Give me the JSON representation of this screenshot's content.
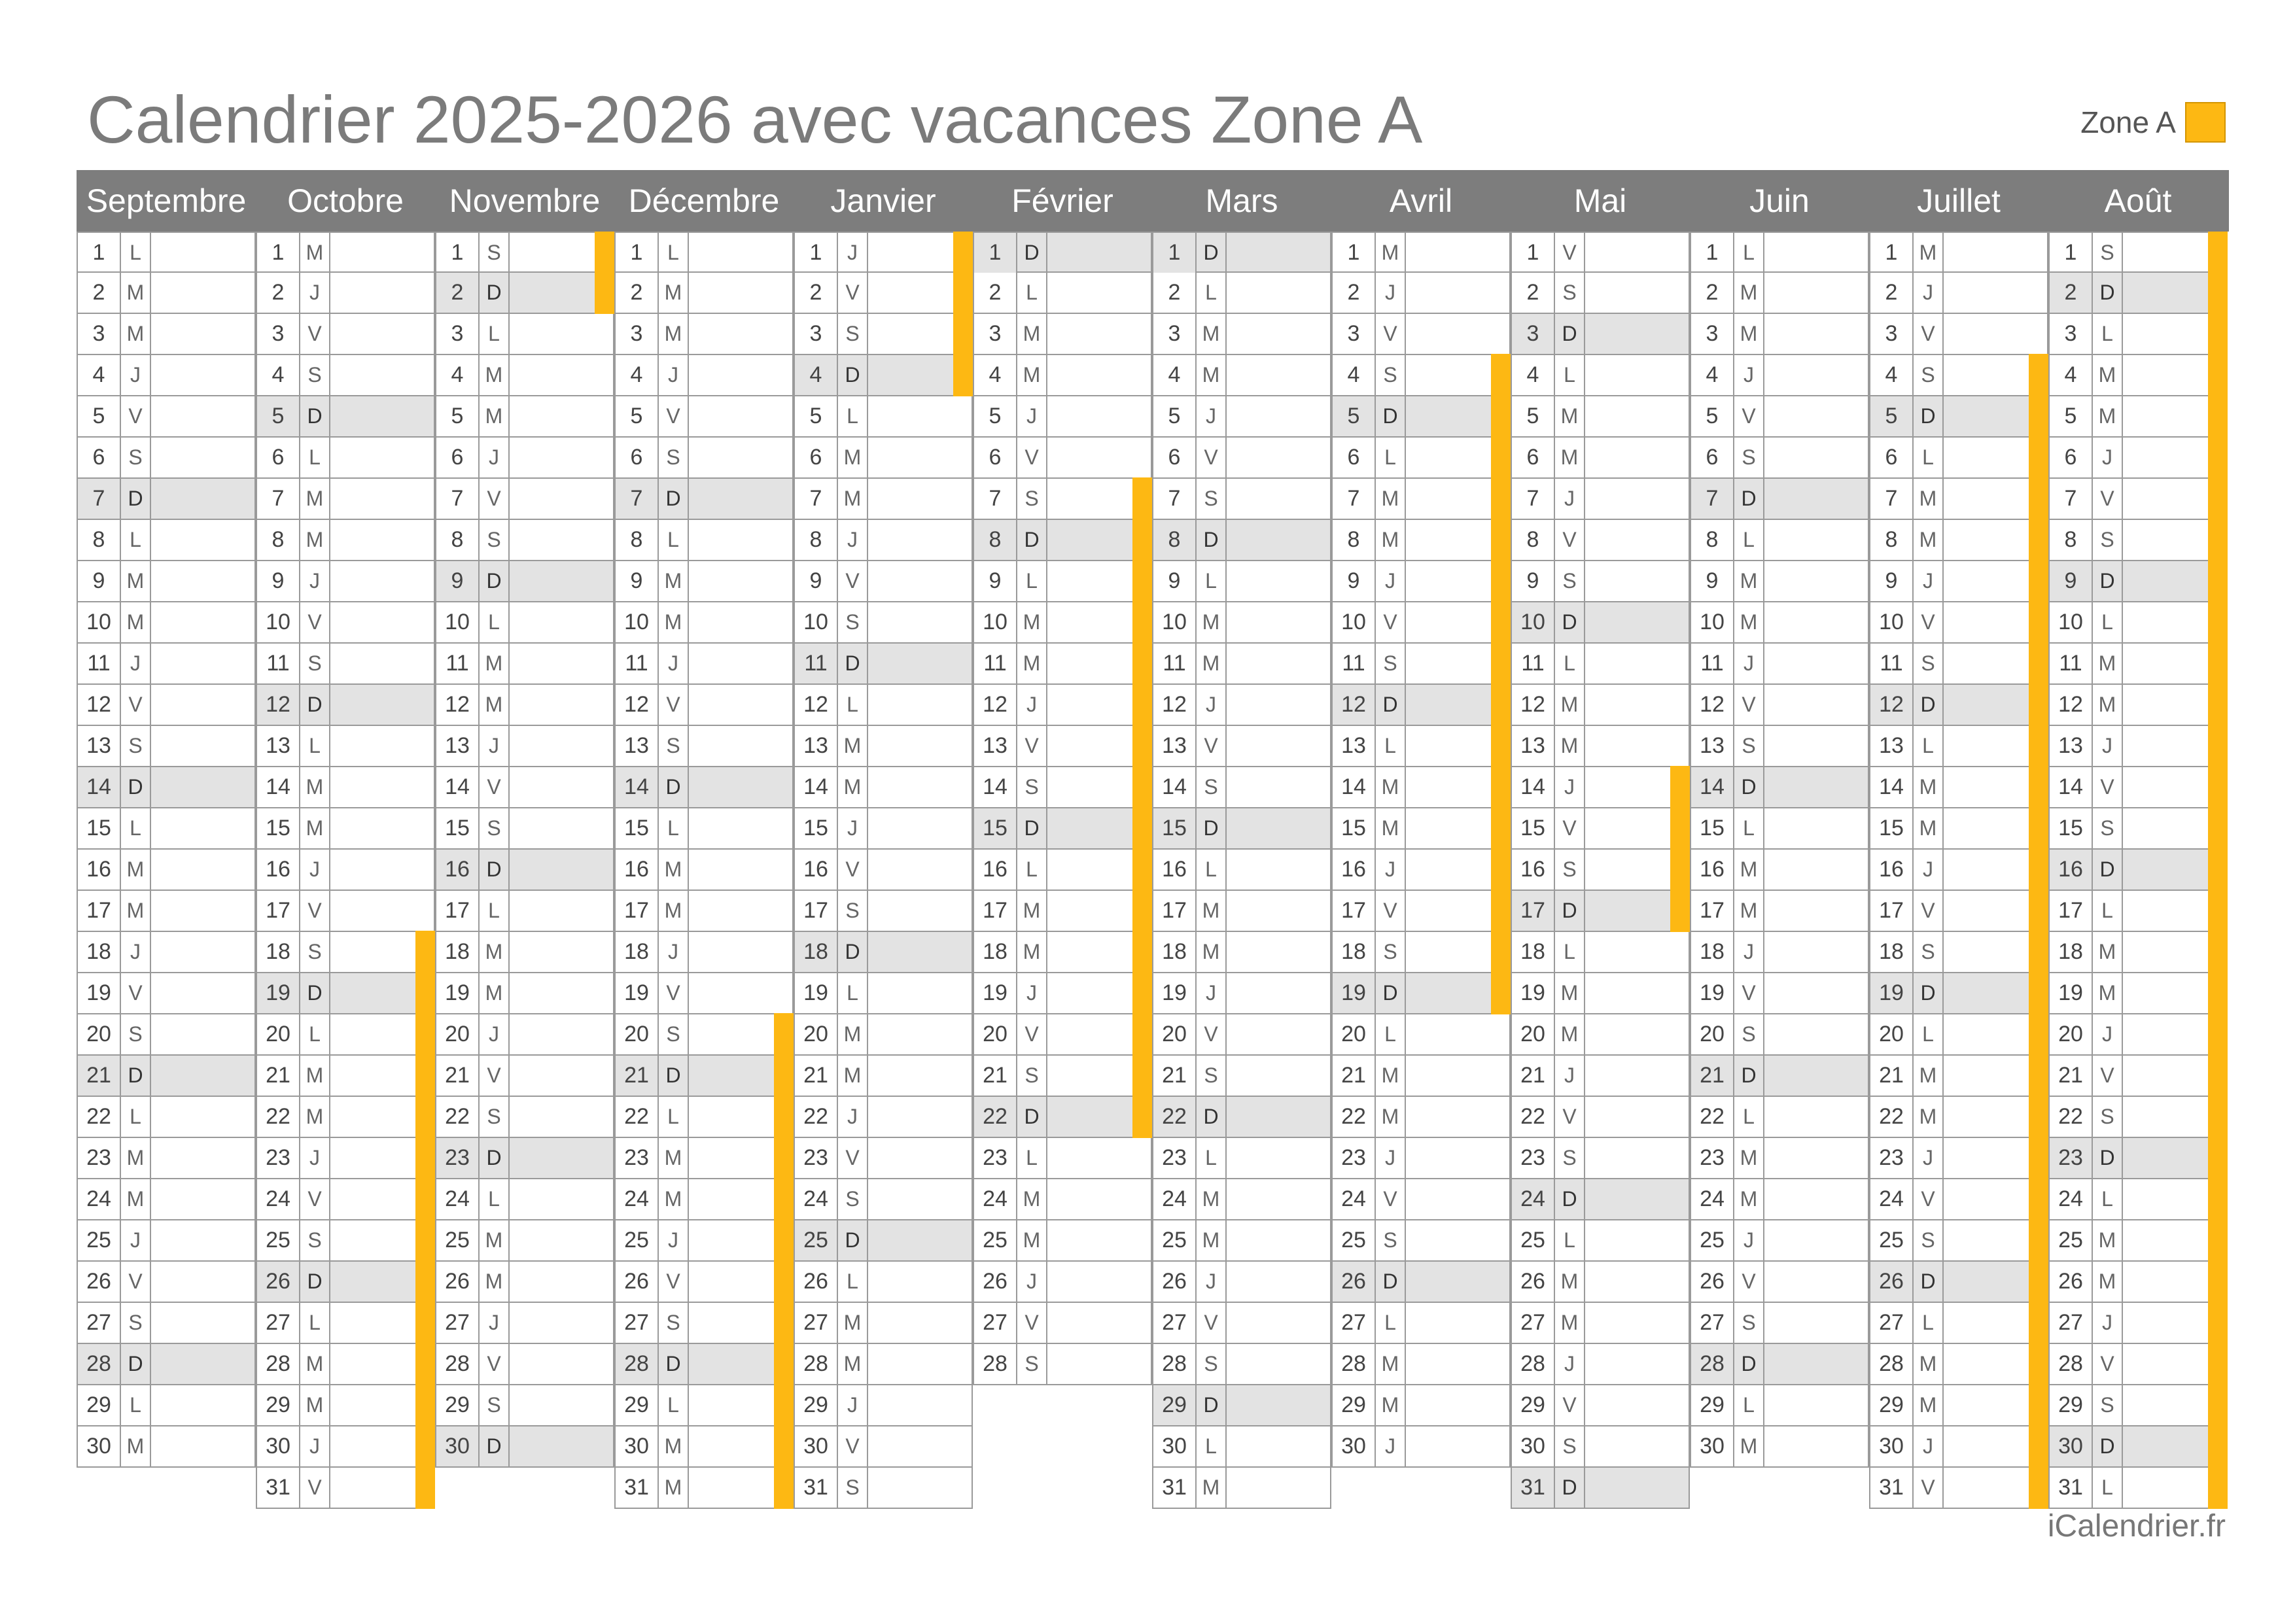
{
  "title": "Calendrier 2025-2026 avec vacances Zone A",
  "legend": {
    "label": "Zone A",
    "color": "#fdb813"
  },
  "footer": "iCalendrier.fr",
  "months": [
    {
      "name": "Septembre",
      "start": "L",
      "days": 30,
      "vac": []
    },
    {
      "name": "Octobre",
      "start": "M2",
      "days": 31,
      "vac": [
        18,
        19,
        20,
        21,
        22,
        23,
        24,
        25,
        26,
        27,
        28,
        29,
        30,
        31
      ]
    },
    {
      "name": "Novembre",
      "start": "S",
      "days": 30,
      "vac": [
        1,
        2
      ]
    },
    {
      "name": "Décembre",
      "start": "L",
      "days": 31,
      "vac": [
        20,
        21,
        22,
        23,
        24,
        25,
        26,
        27,
        28,
        29,
        30,
        31
      ]
    },
    {
      "name": "Janvier",
      "start": "J",
      "days": 31,
      "vac": [
        1,
        2,
        3,
        4
      ]
    },
    {
      "name": "Février",
      "start": "D",
      "days": 28,
      "vac": [
        7,
        8,
        9,
        10,
        11,
        12,
        13,
        14,
        15,
        16,
        17,
        18,
        19,
        20,
        21,
        22
      ]
    },
    {
      "name": "Mars",
      "start": "D",
      "days": 31,
      "vac": []
    },
    {
      "name": "Avril",
      "start": "M2",
      "days": 30,
      "vac": [
        4,
        5,
        6,
        7,
        8,
        9,
        10,
        11,
        12,
        13,
        14,
        15,
        16,
        17,
        18,
        19
      ]
    },
    {
      "name": "Mai",
      "start": "V",
      "days": 31,
      "vac": [
        14,
        15,
        16,
        17
      ]
    },
    {
      "name": "Juin",
      "start": "L",
      "days": 30,
      "vac": []
    },
    {
      "name": "Juillet",
      "start": "M2",
      "days": 31,
      "vac": [
        4,
        5,
        6,
        7,
        8,
        9,
        10,
        11,
        12,
        13,
        14,
        15,
        16,
        17,
        18,
        19,
        20,
        21,
        22,
        23,
        24,
        25,
        26,
        27,
        28,
        29,
        30,
        31
      ]
    },
    {
      "name": "Août",
      "start": "S",
      "days": 31,
      "vac": [
        1,
        2,
        3,
        4,
        5,
        6,
        7,
        8,
        9,
        10,
        11,
        12,
        13,
        14,
        15,
        16,
        17,
        18,
        19,
        20,
        21,
        22,
        23,
        24,
        25,
        26,
        27,
        28,
        29,
        30,
        31
      ]
    }
  ],
  "weekday_letters": [
    "L",
    "M",
    "M",
    "J",
    "V",
    "S",
    "D"
  ]
}
